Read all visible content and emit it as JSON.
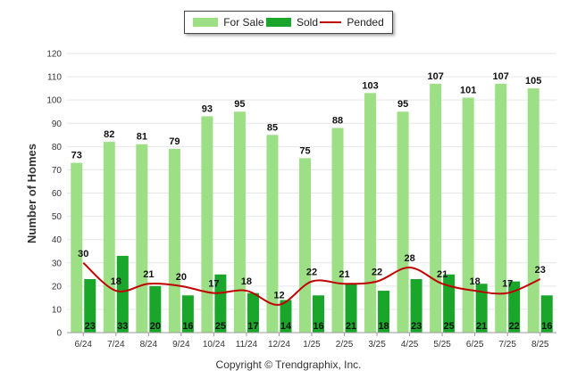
{
  "legend": {
    "for_sale": "For Sale",
    "sold": "Sold",
    "pended": "Pended"
  },
  "copyright": "Copyright © Trendgraphix, Inc.",
  "chart_data": {
    "type": "bar",
    "ylabel": "Number of Homes",
    "xlabel": "",
    "ylim": [
      0,
      120
    ],
    "yticks": [
      0,
      10,
      20,
      30,
      40,
      50,
      60,
      70,
      80,
      90,
      100,
      110,
      120
    ],
    "grid": true,
    "legend_position": "top-center",
    "categories": [
      "6/24",
      "7/24",
      "8/24",
      "9/24",
      "10/24",
      "11/24",
      "12/24",
      "1/25",
      "2/25",
      "3/25",
      "4/25",
      "5/25",
      "6/25",
      "7/25",
      "8/25"
    ],
    "series": [
      {
        "name": "For Sale",
        "type": "bar",
        "color": "#9ddf85",
        "values": [
          73,
          82,
          81,
          79,
          93,
          95,
          85,
          75,
          88,
          103,
          95,
          107,
          101,
          107,
          105
        ]
      },
      {
        "name": "Sold",
        "type": "bar",
        "color": "#1aa52b",
        "values": [
          23,
          33,
          20,
          16,
          25,
          17,
          14,
          16,
          21,
          18,
          23,
          25,
          21,
          22,
          16
        ]
      },
      {
        "name": "Pended",
        "type": "line",
        "color": "#c00000",
        "values": [
          30,
          18,
          21,
          20,
          17,
          18,
          12,
          22,
          21,
          22,
          28,
          21,
          18,
          17,
          23
        ]
      }
    ]
  }
}
